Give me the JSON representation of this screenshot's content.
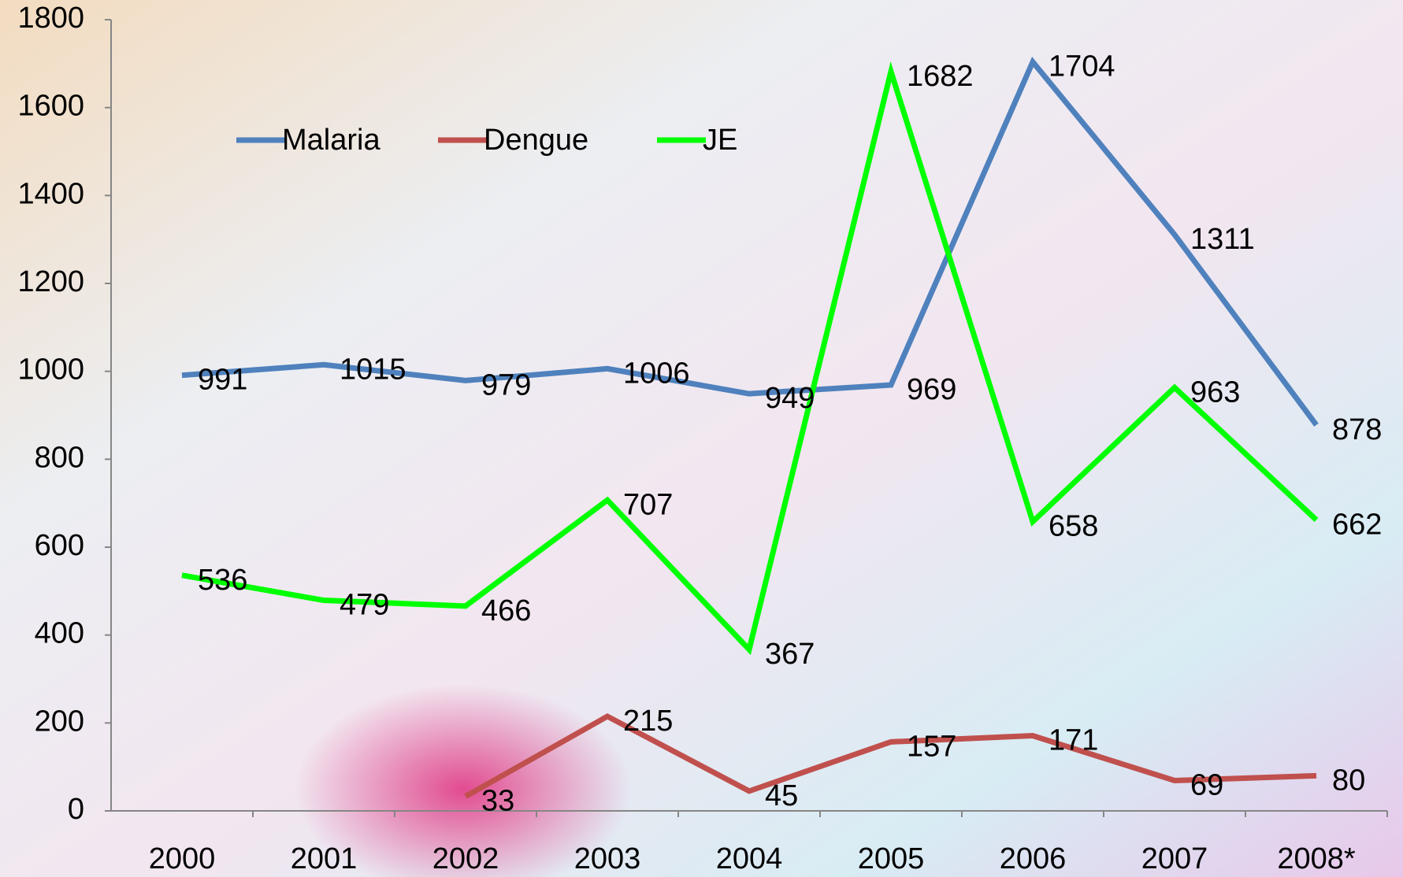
{
  "chart_data": {
    "type": "line",
    "categories": [
      "2000",
      "2001",
      "2002",
      "2003",
      "2004",
      "2005",
      "2006",
      "2007",
      "2008*"
    ],
    "series": [
      {
        "name": "Malaria",
        "color": "#4f81bd",
        "values": [
          991,
          1015,
          979,
          1006,
          949,
          969,
          1704,
          1311,
          878
        ]
      },
      {
        "name": "Dengue",
        "color": "#c0504d",
        "values": [
          null,
          null,
          33,
          215,
          45,
          157,
          171,
          69,
          80
        ]
      },
      {
        "name": "JE",
        "color": "#00ff00",
        "values": [
          536,
          479,
          466,
          707,
          367,
          1682,
          658,
          963,
          662
        ]
      }
    ],
    "ylim": [
      0,
      1800
    ],
    "yticks": [
      0,
      200,
      400,
      600,
      800,
      1000,
      1200,
      1400,
      1600,
      1800
    ],
    "legend": "top-left"
  }
}
